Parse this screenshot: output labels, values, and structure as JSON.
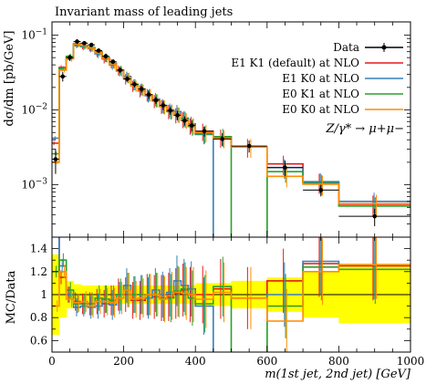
{
  "chart_data": {
    "type": "line",
    "title": "Invariant mass of leading jets",
    "xlabel": "m(1st jet, 2nd jet) [GeV]",
    "ylabel": "dσ/dm [pb/GeV]",
    "ratio_ylabel": "MC/Data",
    "process_label": "Z/γ* → μ+μ−",
    "xlim": [
      0,
      1000
    ],
    "ylim": [
      0.0002,
      0.15
    ],
    "yscale": "log",
    "ratio_ylim": [
      0.5,
      1.5
    ],
    "legend_position": "top-right",
    "x_ticks": [
      "0",
      "200",
      "400",
      "600",
      "800",
      "1000"
    ],
    "y_ticks": [
      "10^-3",
      "10^-2",
      "10^-1"
    ],
    "ratio_ticks": [
      "0.6",
      "0.8",
      "1",
      "1.2",
      "1.4"
    ],
    "bin_edges": [
      0,
      20,
      40,
      60,
      80,
      100,
      120,
      140,
      160,
      180,
      200,
      220,
      240,
      260,
      280,
      300,
      320,
      340,
      360,
      380,
      400,
      450,
      500,
      600,
      700,
      800,
      1000
    ],
    "data": {
      "name": "Data",
      "values": [
        0.0022,
        0.028,
        0.05,
        0.082,
        0.078,
        0.074,
        0.062,
        0.052,
        0.044,
        0.034,
        0.026,
        0.022,
        0.019,
        0.016,
        0.0135,
        0.0115,
        0.0098,
        0.0085,
        0.0072,
        0.0062,
        0.0052,
        0.0041,
        0.0033,
        0.0017,
        0.00085,
        0.00038
      ],
      "errors": [
        0.0008,
        0.004,
        0.005,
        0.006,
        0.005,
        0.005,
        0.004,
        0.004,
        0.003,
        0.003,
        0.002,
        0.002,
        0.002,
        0.002,
        0.0015,
        0.0015,
        0.0012,
        0.0012,
        0.001,
        0.001,
        0.0008,
        0.0008,
        0.0006,
        0.0004,
        0.00015,
        0.0001
      ]
    },
    "data_band": [
      0.35,
      0.2,
      0.12,
      0.09,
      0.08,
      0.08,
      0.08,
      0.08,
      0.08,
      0.08,
      0.08,
      0.08,
      0.08,
      0.08,
      0.08,
      0.08,
      0.08,
      0.08,
      0.08,
      0.08,
      0.1,
      0.1,
      0.12,
      0.15,
      0.2,
      0.25
    ],
    "series": [
      {
        "name": "E1 K1 (default) at NLO",
        "color": "#e41a1c",
        "values": [
          0.0036,
          0.037,
          0.05,
          0.077,
          0.072,
          0.068,
          0.058,
          0.048,
          0.042,
          0.034,
          0.026,
          0.021,
          0.018,
          0.016,
          0.0132,
          0.0112,
          0.0096,
          0.0086,
          0.0075,
          0.0062,
          0.0052,
          0.0043,
          0.0032,
          0.0019,
          0.00108,
          0.00055
        ],
        "ratio": [
          1.6,
          1.15,
          1.0,
          0.94,
          0.92,
          0.92,
          0.94,
          0.92,
          0.95,
          1.0,
          1.0,
          0.95,
          0.95,
          1.0,
          0.98,
          0.97,
          0.98,
          1.01,
          1.04,
          1.0,
          1.0,
          1.05,
          0.97,
          1.12,
          1.27,
          1.25
        ]
      },
      {
        "name": "E1 K0 at NLO",
        "color": "#377eb8",
        "values": [
          0.0042,
          0.035,
          0.05,
          0.073,
          0.07,
          0.066,
          0.056,
          0.05,
          0.04,
          0.033,
          0.028,
          0.022,
          0.019,
          0.0155,
          0.014,
          0.0115,
          0.01,
          0.0095,
          0.0078,
          0.0065,
          0.0047,
          0.0001,
          0.0001,
          0.0017,
          0.0011,
          0.0006
        ],
        "ratio": [
          1.9,
          1.25,
          1.0,
          0.89,
          0.9,
          0.89,
          0.9,
          0.96,
          0.91,
          0.97,
          1.08,
          1.0,
          1.0,
          0.97,
          1.04,
          1.0,
          1.02,
          1.12,
          1.08,
          1.05,
          0.9,
          0.02,
          0.02,
          1.0,
          1.29,
          1.26
        ]
      },
      {
        "name": "E0 K1 at NLO",
        "color": "#2ca02c",
        "values": [
          0.0026,
          0.036,
          0.052,
          0.075,
          0.072,
          0.068,
          0.06,
          0.05,
          0.042,
          0.034,
          0.027,
          0.022,
          0.019,
          0.016,
          0.0135,
          0.0112,
          0.0095,
          0.0088,
          0.0076,
          0.006,
          0.0048,
          0.0044,
          0.0001,
          0.0015,
          0.00105,
          0.00052
        ],
        "ratio": [
          1.2,
          1.3,
          1.04,
          0.92,
          0.92,
          0.92,
          0.97,
          0.96,
          0.95,
          1.0,
          1.04,
          1.0,
          1.0,
          1.0,
          1.0,
          0.97,
          0.97,
          1.03,
          1.05,
          0.97,
          0.92,
          1.07,
          0.02,
          0.9,
          1.24,
          1.22
        ]
      },
      {
        "name": "E0 K0 at NLO",
        "color": "#ff8c00",
        "values": [
          0.002,
          0.034,
          0.048,
          0.076,
          0.073,
          0.067,
          0.058,
          0.049,
          0.041,
          0.033,
          0.027,
          0.021,
          0.0185,
          0.016,
          0.0135,
          0.011,
          0.0097,
          0.0087,
          0.0073,
          0.0062,
          0.005,
          0.0042,
          0.0032,
          0.0013,
          0.00102,
          0.00056
        ],
        "ratio": [
          0.9,
          1.2,
          0.96,
          0.93,
          0.94,
          0.9,
          0.94,
          0.94,
          0.93,
          0.97,
          1.04,
          0.96,
          0.97,
          1.0,
          1.0,
          0.96,
          0.99,
          1.02,
          1.01,
          1.0,
          0.96,
          1.02,
          0.97,
          0.77,
          1.2,
          1.26
        ]
      }
    ]
  }
}
